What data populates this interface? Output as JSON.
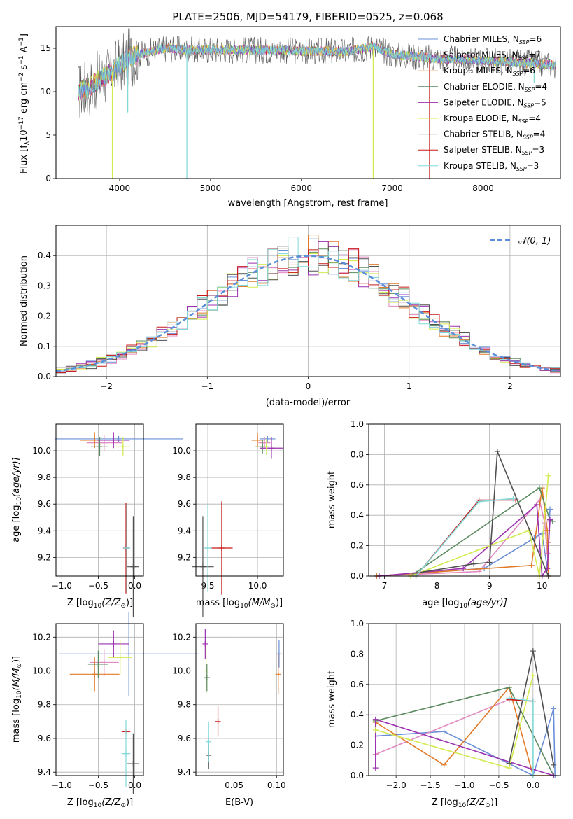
{
  "colors": {
    "Chabrier MILES": "#6a8fd8",
    "Salpeter MILES": "#e08ac0",
    "Kroupa MILES": "#e07a28",
    "Chabrier ELODIE": "#5b8a5e",
    "Salpeter ELODIE": "#9b30b0",
    "Kroupa ELODIE": "#d4ea50",
    "Chabrier STELIB": "#505050",
    "Salpeter STELIB": "#c81818",
    "Kroupa STELIB": "#80d8d8"
  },
  "chart_data": [
    {
      "id": "spectrum",
      "type": "line",
      "title": "PLATE=2506, MJD=54179, FIBERID=0525, z=0.068",
      "xlabel": "wavelength [Angstrom, rest frame]",
      "ylabel": "Flux [f",
      "xlim": [
        3300,
        8850
      ],
      "ylim": [
        0,
        17.5
      ],
      "xticks": [
        "4000",
        "5000",
        "6000",
        "7000",
        "8000"
      ],
      "yticks": [
        "0",
        "5",
        "10",
        "15"
      ],
      "grid": false,
      "legend": "top-right",
      "legend_entries": [
        {
          "name": "Chabrier MILES",
          "n": "6"
        },
        {
          "name": "Salpeter MILES",
          "n": "7"
        },
        {
          "name": "Kroupa MILES",
          "n": "6"
        },
        {
          "name": "Chabrier ELODIE",
          "n": "4"
        },
        {
          "name": "Salpeter ELODIE",
          "n": "5"
        },
        {
          "name": "Kroupa ELODIE",
          "n": "4"
        },
        {
          "name": "Chabrier STELIB",
          "n": "4"
        },
        {
          "name": "Salpeter STELIB",
          "n": "3"
        },
        {
          "name": "Kroupa STELIB",
          "n": "3"
        }
      ],
      "continuum": [
        [
          3550,
          10.0
        ],
        [
          3650,
          10.5
        ],
        [
          3800,
          11.5
        ],
        [
          3950,
          12.5
        ],
        [
          4100,
          14.0
        ],
        [
          4300,
          14.5
        ],
        [
          4500,
          15.0
        ],
        [
          4700,
          14.8
        ],
        [
          5000,
          14.8
        ],
        [
          5500,
          14.8
        ],
        [
          6000,
          14.7
        ],
        [
          6500,
          14.6
        ],
        [
          6800,
          15.2
        ],
        [
          7000,
          14.3
        ],
        [
          7500,
          13.8
        ],
        [
          8000,
          13.6
        ],
        [
          8500,
          13.3
        ],
        [
          8800,
          13.0
        ]
      ],
      "features": [
        {
          "series": "Kroupa ELODIE",
          "x": 3920,
          "y": 0
        },
        {
          "series": "Kroupa STELIB",
          "x": 4090,
          "y": 7.6
        },
        {
          "series": "Kroupa STELIB",
          "x": 4740,
          "y": 0
        },
        {
          "series": "Kroupa ELODIE",
          "x": 6790,
          "y": 0
        },
        {
          "series": "Salpeter STELIB",
          "x": 7410,
          "y": 0
        },
        {
          "series": "Kroupa STELIB",
          "x": 8560,
          "y": 11.0
        }
      ]
    },
    {
      "id": "residuals",
      "type": "line",
      "xlabel": "(data-model)/error",
      "ylabel": "Normed distribution",
      "xlim": [
        -2.5,
        2.5
      ],
      "ylim": [
        0,
        0.5
      ],
      "xticks": [
        "−2",
        "−1",
        "0",
        "1",
        "2"
      ],
      "yticks": [
        "0.0",
        "0.1",
        "0.2",
        "0.3",
        "0.4"
      ],
      "grid": true,
      "legend": "top-right",
      "legend_label": "𝒩(0, 1)",
      "gaussian": {
        "mean": 0,
        "sigma": 1,
        "color": "#5b8fd8"
      },
      "bin_width": 0.1
    },
    {
      "id": "z-age",
      "type": "scatter",
      "xlabel": "Z [log",
      "ylabel": "age  [log",
      "xlim": [
        -1.08,
        0.12
      ],
      "ylim": [
        9.06,
        10.2
      ],
      "xticks": [
        "−1.0",
        "−0.5",
        "0.0"
      ],
      "yticks": [
        "9.2",
        "9.4",
        "9.6",
        "9.8",
        "10.0"
      ],
      "grid": true,
      "points": [
        {
          "series": "Chabrier MILES",
          "x": -0.22,
          "y": 10.09,
          "xerr": 0.88,
          "yerr": 0.0
        },
        {
          "series": "Salpeter MILES",
          "x": -0.42,
          "y": 10.06,
          "xerr": 0.24,
          "yerr": 0.06
        },
        {
          "series": "Kroupa MILES",
          "x": -0.55,
          "y": 10.08,
          "xerr": 0.2,
          "yerr": 0.06
        },
        {
          "series": "Chabrier ELODIE",
          "x": -0.48,
          "y": 10.03,
          "xerr": 0.12,
          "yerr": 0.07
        },
        {
          "series": "Salpeter ELODIE",
          "x": -0.29,
          "y": 10.08,
          "xerr": 0.22,
          "yerr": 0.06
        },
        {
          "series": "Kroupa ELODIE",
          "x": -0.16,
          "y": 10.03,
          "xerr": 0.1,
          "yerr": 0.07
        },
        {
          "series": "Chabrier STELIB",
          "x": -0.02,
          "y": 9.13,
          "xerr": 0.08,
          "yerr": 0.38
        },
        {
          "series": "Salpeter STELIB",
          "x": -0.12,
          "y": 9.27,
          "xerr": 0.04,
          "yerr": 0.34
        },
        {
          "series": "Kroupa STELIB",
          "x": -0.11,
          "y": 9.27,
          "xerr": 0.05,
          "yerr": 0.33
        }
      ]
    },
    {
      "id": "mass-age",
      "type": "scatter",
      "xlabel": "mass [log",
      "ylabel": "",
      "xlim": [
        9.38,
        10.26
      ],
      "ylim": [
        9.06,
        10.2
      ],
      "xticks": [
        "9.5",
        "10.0"
      ],
      "yticks": [
        "9.2",
        "9.4",
        "9.6",
        "9.8",
        "10.0"
      ],
      "grid": true,
      "points": [
        {
          "series": "Chabrier MILES",
          "x": 10.1,
          "y": 10.09,
          "xerr": 0.08,
          "yerr": 0.0
        },
        {
          "series": "Salpeter MILES",
          "x": 10.07,
          "y": 10.06,
          "xerr": 0.06,
          "yerr": 0.04
        },
        {
          "series": "Kroupa MILES",
          "x": 10.0,
          "y": 10.08,
          "xerr": 0.06,
          "yerr": 0.05
        },
        {
          "series": "Chabrier ELODIE",
          "x": 10.05,
          "y": 10.03,
          "xerr": 0.07,
          "yerr": 0.05
        },
        {
          "series": "Salpeter ELODIE",
          "x": 10.14,
          "y": 10.02,
          "xerr": 0.12,
          "yerr": 0.08
        },
        {
          "series": "Kroupa ELODIE",
          "x": 10.09,
          "y": 10.03,
          "xerr": 0.03,
          "yerr": 0.06
        },
        {
          "series": "Chabrier STELIB",
          "x": 9.45,
          "y": 9.13,
          "xerr": 0.11,
          "yerr": 0.38
        },
        {
          "series": "Salpeter STELIB",
          "x": 9.64,
          "y": 9.27,
          "xerr": 0.11,
          "yerr": 0.35
        },
        {
          "series": "Kroupa STELIB",
          "x": 9.5,
          "y": 9.27,
          "xerr": 0.04,
          "yerr": 0.33
        }
      ]
    },
    {
      "id": "age-weight",
      "type": "line",
      "xlabel": "age  [log",
      "ylabel": "mass weight",
      "xlim": [
        6.7,
        10.35
      ],
      "ylim": [
        0,
        1
      ],
      "xticks": [
        "7",
        "8",
        "9",
        "10"
      ],
      "yticks": [
        "0.0",
        "0.2",
        "0.4",
        "0.6",
        "0.8",
        "1.0"
      ],
      "grid": true,
      "series": [
        {
          "name": "Chabrier MILES",
          "x": [
            6.85,
            8.9,
            9.85,
            10.0,
            10.1,
            10.15
          ],
          "y": [
            0.0,
            0.05,
            0.25,
            0.28,
            0.05,
            0.44
          ]
        },
        {
          "name": "Salpeter MILES",
          "x": [
            6.85,
            8.8,
            9.95,
            10.05,
            10.1,
            10.12,
            10.15
          ],
          "y": [
            0.0,
            0.03,
            0.5,
            0.35,
            0.15,
            0.22,
            0.36
          ]
        },
        {
          "name": "Kroupa MILES",
          "x": [
            6.85,
            9.8,
            10.0,
            10.1,
            10.12
          ],
          "y": [
            0.0,
            0.07,
            0.58,
            0.3,
            0.0
          ]
        },
        {
          "name": "Chabrier ELODIE",
          "x": [
            7.5,
            9.95,
            10.15,
            10.2
          ],
          "y": [
            0.0,
            0.58,
            0.37,
            0.36
          ]
        },
        {
          "name": "Salpeter ELODIE",
          "x": [
            6.9,
            8.5,
            9.9,
            10.0,
            10.1,
            10.15
          ],
          "y": [
            0.0,
            0.05,
            0.47,
            0.0,
            0.05,
            0.37
          ]
        },
        {
          "name": "Kroupa ELODIE",
          "x": [
            7.5,
            9.75,
            9.95,
            10.12
          ],
          "y": [
            0.0,
            0.3,
            0.0,
            0.66
          ]
        },
        {
          "name": "Chabrier STELIB",
          "x": [
            7.6,
            8.7,
            9.0,
            9.15,
            10.12
          ],
          "y": [
            0.02,
            0.08,
            0.09,
            0.82,
            0.0
          ]
        },
        {
          "name": "Salpeter STELIB",
          "x": [
            7.6,
            8.8,
            9.5
          ],
          "y": [
            0.0,
            0.5,
            0.5
          ]
        },
        {
          "name": "Kroupa STELIB",
          "x": [
            7.6,
            8.8,
            9.45
          ],
          "y": [
            0.0,
            0.49,
            0.51
          ]
        }
      ]
    },
    {
      "id": "z-mass",
      "type": "scatter",
      "xlabel": "Z [log",
      "ylabel": "mass [log",
      "xlim": [
        -1.08,
        0.12
      ],
      "ylim": [
        9.38,
        10.28
      ],
      "xticks": [
        "−1.0",
        "−0.5",
        "0.0"
      ],
      "yticks": [
        "9.4",
        "9.6",
        "9.8",
        "10.0",
        "10.2"
      ],
      "grid": true,
      "points": [
        {
          "series": "Chabrier MILES",
          "x": -0.08,
          "y": 10.1,
          "xerr": 0.96,
          "yerr": 0.25
        },
        {
          "series": "Salpeter MILES",
          "x": -0.42,
          "y": 10.05,
          "xerr": 0.2,
          "yerr": 0.08
        },
        {
          "series": "Kroupa MILES",
          "x": -0.55,
          "y": 9.98,
          "xerr": 0.34,
          "yerr": 0.1
        },
        {
          "series": "Chabrier ELODIE",
          "x": -0.5,
          "y": 10.04,
          "xerr": 0.14,
          "yerr": 0.08
        },
        {
          "series": "Salpeter ELODIE",
          "x": -0.29,
          "y": 10.16,
          "xerr": 0.21,
          "yerr": 0.08
        },
        {
          "series": "Kroupa ELODIE",
          "x": -0.2,
          "y": 10.08,
          "xerr": 0.16,
          "yerr": 0.1
        },
        {
          "series": "Chabrier STELIB",
          "x": -0.02,
          "y": 9.45,
          "xerr": 0.08,
          "yerr": 0.18
        },
        {
          "series": "Salpeter STELIB",
          "x": -0.12,
          "y": 9.64,
          "xerr": 0.06,
          "yerr": 0.0
        },
        {
          "series": "Kroupa STELIB",
          "x": -0.12,
          "y": 9.51,
          "xerr": 0.06,
          "yerr": 0.2
        }
      ]
    },
    {
      "id": "ebv-mass",
      "type": "scatter",
      "xlabel": "E(B-V)",
      "ylabel": "",
      "xlim": [
        0.005,
        0.108
      ],
      "ylim": [
        9.38,
        10.28
      ],
      "xticks": [
        "0.05",
        "0.10"
      ],
      "yticks": [
        "9.4",
        "9.6",
        "9.8",
        "10.0",
        "10.2"
      ],
      "grid": true,
      "points": [
        {
          "series": "Chabrier MILES",
          "x": 0.103,
          "y": 10.1,
          "xerr": 0.0,
          "yerr": 0.08
        },
        {
          "series": "Kroupa MILES",
          "x": 0.102,
          "y": 9.98,
          "xerr": 0.0,
          "yerr": 0.12
        },
        {
          "series": "Salpeter ELODIE",
          "x": 0.016,
          "y": 10.16,
          "xerr": 0.0,
          "yerr": 0.09
        },
        {
          "series": "Kroupa ELODIE",
          "x": 0.017,
          "y": 10.0,
          "xerr": 0.0,
          "yerr": 0.14
        },
        {
          "series": "Chabrier ELODIE",
          "x": 0.018,
          "y": 9.96,
          "xerr": 0.0,
          "yerr": 0.08
        },
        {
          "series": "Chabrier STELIB",
          "x": 0.02,
          "y": 9.5,
          "xerr": 0.0,
          "yerr": 0.08
        },
        {
          "series": "Salpeter STELIB",
          "x": 0.031,
          "y": 9.7,
          "xerr": 0.0,
          "yerr": 0.09
        },
        {
          "series": "Kroupa STELIB",
          "x": 0.02,
          "y": 9.58,
          "xerr": 0.0,
          "yerr": 0.12
        }
      ]
    },
    {
      "id": "z-weight",
      "type": "line",
      "xlabel": "Z [log",
      "ylabel": "mass weight",
      "xlim": [
        -2.4,
        0.4
      ],
      "ylim": [
        0,
        1
      ],
      "xticks": [
        "−2.0",
        "−1.5",
        "−1.0",
        "−0.5",
        "0.0"
      ],
      "yticks": [
        "0.0",
        "0.2",
        "0.4",
        "0.6",
        "0.8",
        "1.0"
      ],
      "grid": true,
      "series": [
        {
          "name": "Chabrier MILES",
          "x": [
            -2.3,
            -1.3,
            0.0,
            0.3,
            0.32
          ],
          "y": [
            0.26,
            0.29,
            0.0,
            0.44,
            0.0
          ]
        },
        {
          "name": "Salpeter MILES",
          "x": [
            -2.3,
            -0.35,
            0.0
          ],
          "y": [
            0.14,
            0.5,
            0.49
          ]
        },
        {
          "name": "Kroupa MILES",
          "x": [
            -2.3,
            -1.3,
            -0.35,
            0.0,
            0.3
          ],
          "y": [
            0.35,
            0.07,
            0.58,
            0.0,
            0.0
          ]
        },
        {
          "name": "Chabrier ELODIE",
          "x": [
            -2.3,
            -0.35,
            0.3
          ],
          "y": [
            0.36,
            0.58,
            0.0
          ]
        },
        {
          "name": "Salpeter ELODIE",
          "x": [
            -2.3,
            -2.3,
            0.0,
            0.3
          ],
          "y": [
            0.05,
            0.37,
            0.04,
            0.0
          ]
        },
        {
          "name": "Kroupa ELODIE",
          "x": [
            -2.3,
            -0.35,
            0.0
          ],
          "y": [
            0.3,
            0.05,
            0.66
          ]
        },
        {
          "name": "Chabrier STELIB",
          "x": [
            -0.35,
            0.0,
            0.3
          ],
          "y": [
            0.08,
            0.82,
            0.07
          ]
        },
        {
          "name": "Salpeter STELIB",
          "x": [
            -0.35,
            0.0
          ],
          "y": [
            0.5,
            0.49
          ]
        },
        {
          "name": "Kroupa STELIB",
          "x": [
            -0.35,
            0.0,
            0.0
          ],
          "y": [
            0.51,
            0.49,
            0.0
          ]
        }
      ]
    }
  ]
}
